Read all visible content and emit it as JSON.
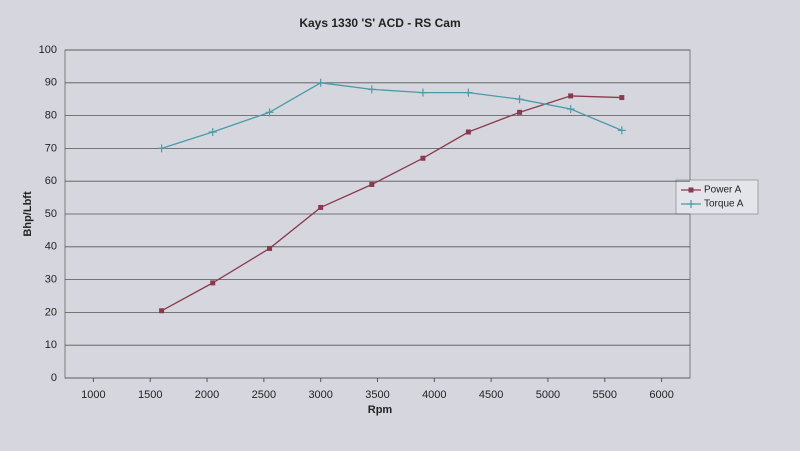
{
  "chart_data": {
    "type": "line",
    "title": "Kays 1330 'S' ACD - RS Cam",
    "x_label": "Rpm",
    "y_label": "Bhp/Lbft",
    "x": [
      1600,
      2050,
      2550,
      3000,
      3450,
      3900,
      4300,
      4750,
      5200,
      5650
    ],
    "series": [
      {
        "name": "Power A",
        "color": "#8b3a4e",
        "marker": "square",
        "values": [
          20.5,
          29,
          39.5,
          52,
          59,
          67,
          75,
          81,
          86,
          85.5
        ]
      },
      {
        "name": "Torque A",
        "color": "#4a9aa8",
        "marker": "plus",
        "values": [
          70,
          75,
          81,
          90,
          88,
          87,
          87,
          85,
          82,
          75.5
        ]
      }
    ],
    "xlim": [
      750,
      6250
    ],
    "xticks": [
      1000,
      1500,
      2000,
      2500,
      3000,
      3500,
      4000,
      4500,
      5000,
      5500,
      6000
    ],
    "ylim": [
      0,
      100
    ],
    "yticks": [
      0,
      10,
      20,
      30,
      40,
      50,
      60,
      70,
      80,
      90,
      100
    ],
    "grid": true,
    "legend": "right"
  }
}
